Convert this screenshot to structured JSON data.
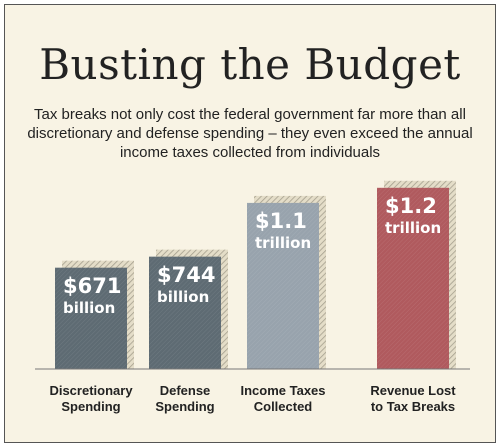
{
  "chart_data": {
    "type": "bar",
    "title": "Busting the Budget",
    "subtitle": "Tax breaks not only cost the federal government far more than all discretionary and defense spending – they even exceed the annual income taxes collected from individuals",
    "categories": [
      "Discretionary Spending",
      "Defense Spending",
      "Income Taxes Collected",
      "Revenue Lost to Tax Breaks"
    ],
    "category_lines": [
      [
        "Discretionary",
        "Spending"
      ],
      [
        "Defense",
        "Spending"
      ],
      [
        "Income Taxes",
        "Collected"
      ],
      [
        "Revenue Lost",
        "to Tax Breaks"
      ]
    ],
    "values": [
      0.671,
      0.744,
      1.1,
      1.2
    ],
    "unit": "trillion dollars",
    "data_labels": [
      {
        "value": "$671",
        "unit": "billion"
      },
      {
        "value": "$744",
        "unit": "billion"
      },
      {
        "value": "$1.1",
        "unit": "trillion"
      },
      {
        "value": "$1.2",
        "unit": "trillion"
      }
    ],
    "colors": [
      "#5e6b73",
      "#5e6b73",
      "#98a3ad",
      "#b05a5e"
    ],
    "xlabel": "",
    "ylabel": "",
    "grid": false
  }
}
